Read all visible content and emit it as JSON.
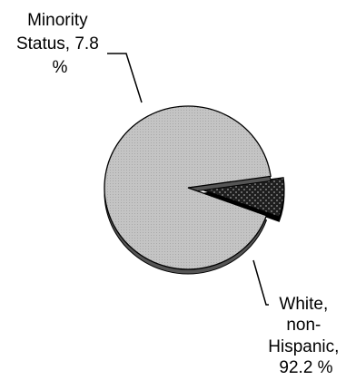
{
  "chart_data": {
    "type": "pie",
    "title": "",
    "slices": [
      {
        "label_lines": [
          "Minority",
          "Status, 7.8",
          "%"
        ],
        "value": 7.8,
        "exploded": true,
        "pattern": "dark-dotted"
      },
      {
        "label_lines": [
          "White,",
          "non-",
          "Hispanic,",
          "92.2 %"
        ],
        "value": 92.2,
        "exploded": false,
        "pattern": "light-stippled"
      }
    ],
    "start_angle_deg": -20,
    "direction": "counterclockwise",
    "legend": "none",
    "colors": {
      "white_fill": "#c4c4c4",
      "white_side": "#555555",
      "minority_fill": "#1e1e1e",
      "minority_dots": "#9a9a9a",
      "outline": "#000000"
    }
  }
}
